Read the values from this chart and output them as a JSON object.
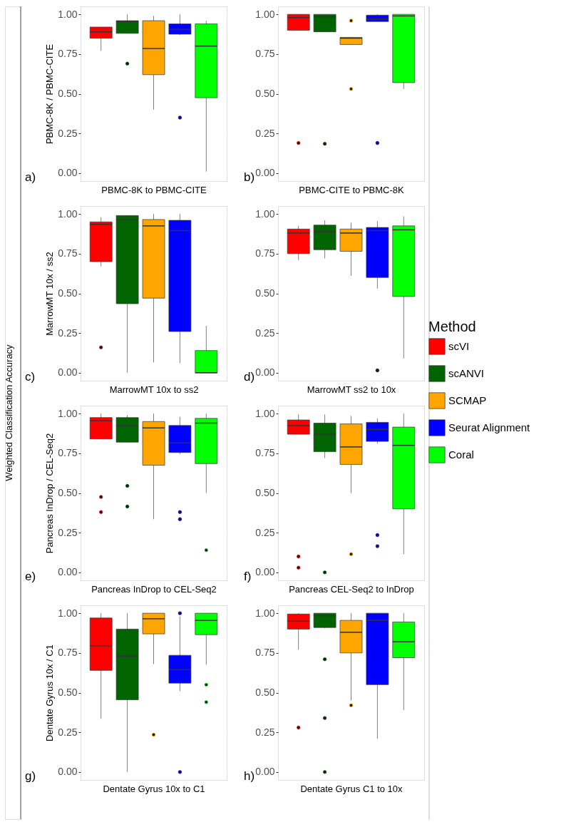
{
  "chart_data": [
    {
      "type": "box",
      "ylabel": "PBMC-8K / PBMC-CITE",
      "xlabel": "PBMC-8K to PBMC-CITE",
      "annotations": [
        "a)",
        "Weighted Classification Accuracy"
      ],
      "legend_title": "Method",
      "legend": "right",
      "grid": true,
      "tick_labels": "y",
      "categories": [
        null
      ],
      "ylim": [
        -0.05,
        1.05
      ],
      "yticks": [
        {
          "value": 0,
          "label": "0.00"
        },
        {
          "value": 0.25,
          "label": "0.25"
        },
        {
          "value": 0.5,
          "label": "0.50"
        },
        {
          "value": 0.75,
          "label": "0.75"
        },
        {
          "value": 1,
          "label": "1.00"
        }
      ],
      "series": [
        {
          "name": "scVI",
          "color": "#ff0000",
          "boxes": [
            {
              "low": 0.77,
              "q1": 0.85,
              "median": 0.89,
              "q3": 0.92,
              "high": 0.92
            }
          ]
        },
        {
          "name": "scANVI",
          "color": "#006400",
          "boxes": [
            {
              "low": 0.88,
              "q1": 0.88,
              "median": 0.955,
              "q3": 0.96,
              "high": 1.0,
              "outliers": [
                0.69
              ]
            }
          ]
        },
        {
          "name": "SCMAP",
          "color": "#ffa500",
          "boxes": [
            {
              "low": 0.4,
              "q1": 0.62,
              "median": 0.785,
              "q3": 0.96,
              "high": 0.99
            }
          ]
        },
        {
          "name": "Seurat Alignment",
          "color": "#0000ff",
          "boxes": [
            {
              "low": 0.87,
              "q1": 0.875,
              "median": 0.905,
              "q3": 0.94,
              "high": 1.0,
              "outliers": [
                0.35
              ]
            }
          ]
        },
        {
          "name": "Coral",
          "color": "#00ff00",
          "boxes": [
            {
              "low": 0.01,
              "q1": 0.475,
              "median": 0.8,
              "q3": 0.94,
              "high": 0.96
            }
          ]
        }
      ]
    },
    {
      "type": "box",
      "xlabel": "PBMC-CITE to PBMC-8K",
      "annotations": [
        "b)"
      ],
      "grid": true,
      "tick_labels": "y",
      "categories": [
        null
      ],
      "ylim": [
        -0.05,
        1.05
      ],
      "yticks": [
        {
          "value": 0,
          "label": "0.00"
        },
        {
          "value": 0.25,
          "label": "0.25"
        },
        {
          "value": 0.5,
          "label": "0.50"
        },
        {
          "value": 0.75,
          "label": "0.75"
        },
        {
          "value": 1,
          "label": "1.00"
        }
      ],
      "series": [
        {
          "name": "scVI",
          "color": "#ff0000",
          "boxes": [
            {
              "low": 0.9,
              "q1": 0.9,
              "median": 0.98,
              "q3": 1.0,
              "high": 1.0,
              "outliers": [
                0.19
              ]
            }
          ]
        },
        {
          "name": "scANVI",
          "color": "#006400",
          "boxes": [
            {
              "low": 0.89,
              "q1": 0.89,
              "median": 0.985,
              "q3": 1.0,
              "high": 1.0,
              "outliers": [
                0.185
              ]
            }
          ]
        },
        {
          "name": "SCMAP",
          "color": "#ffa500",
          "boxes": [
            {
              "low": 0.81,
              "q1": 0.81,
              "median": 0.85,
              "q3": 0.855,
              "high": 0.855,
              "outliers": [
                0.96,
                0.53
              ]
            }
          ]
        },
        {
          "name": "Seurat Alignment",
          "color": "#0000ff",
          "boxes": [
            {
              "low": 0.955,
              "q1": 0.955,
              "median": 0.97,
              "q3": 0.995,
              "high": 1.0,
              "outliers": [
                0.19
              ]
            }
          ]
        },
        {
          "name": "Coral",
          "color": "#00ff00",
          "boxes": [
            {
              "low": 0.53,
              "q1": 0.57,
              "median": 0.99,
              "q3": 1.0,
              "high": 1.0
            }
          ]
        }
      ]
    },
    {
      "type": "box",
      "ylabel": "MarrowMT 10x / ss2",
      "xlabel": "MarrowMT 10x to ss2",
      "annotations": [
        "c)"
      ],
      "grid": true,
      "tick_labels": "y",
      "categories": [
        null
      ],
      "ylim": [
        -0.05,
        1.05
      ],
      "yticks": [
        {
          "value": 0,
          "label": "0.00"
        },
        {
          "value": 0.25,
          "label": "0.25"
        },
        {
          "value": 0.5,
          "label": "0.50"
        },
        {
          "value": 0.75,
          "label": "0.75"
        },
        {
          "value": 1,
          "label": "1.00"
        }
      ],
      "series": [
        {
          "name": "scVI",
          "color": "#ff0000",
          "boxes": [
            {
              "low": 0.67,
              "q1": 0.7,
              "median": 0.935,
              "q3": 0.95,
              "high": 0.98,
              "outliers": [
                0.16
              ]
            }
          ]
        },
        {
          "name": "scANVI",
          "color": "#006400",
          "boxes": [
            {
              "low": 0.0,
              "q1": 0.435,
              "median": 0.965,
              "q3": 0.99,
              "high": 0.99
            }
          ]
        },
        {
          "name": "SCMAP",
          "color": "#ffa500",
          "boxes": [
            {
              "low": 0.065,
              "q1": 0.47,
              "median": 0.925,
              "q3": 0.965,
              "high": 1.0
            }
          ]
        },
        {
          "name": "Seurat Alignment",
          "color": "#0000ff",
          "boxes": [
            {
              "low": 0.06,
              "q1": 0.26,
              "median": 0.895,
              "q3": 0.96,
              "high": 1.0
            }
          ]
        },
        {
          "name": "Coral",
          "color": "#00ff00",
          "boxes": [
            {
              "low": 0.0,
              "q1": 0.0,
              "median": 0.0,
              "q3": 0.14,
              "high": 0.295
            }
          ]
        }
      ]
    },
    {
      "type": "box",
      "xlabel": "MarrowMT ss2 to 10x",
      "annotations": [
        "d)"
      ],
      "grid": true,
      "tick_labels": "y",
      "categories": [
        null
      ],
      "ylim": [
        -0.05,
        1.05
      ],
      "yticks": [
        {
          "value": 0,
          "label": "0.00"
        },
        {
          "value": 0.25,
          "label": "0.25"
        },
        {
          "value": 0.5,
          "label": "0.50"
        },
        {
          "value": 0.75,
          "label": "0.75"
        },
        {
          "value": 1,
          "label": "1.00"
        }
      ],
      "series": [
        {
          "name": "scVI",
          "color": "#ff0000",
          "boxes": [
            {
              "low": 0.71,
              "q1": 0.75,
              "median": 0.88,
              "q3": 0.905,
              "high": 0.925
            }
          ]
        },
        {
          "name": "scANVI",
          "color": "#006400",
          "boxes": [
            {
              "low": 0.72,
              "q1": 0.775,
              "median": 0.89,
              "q3": 0.93,
              "high": 0.96
            }
          ]
        },
        {
          "name": "SCMAP",
          "color": "#ffa500",
          "boxes": [
            {
              "low": 0.61,
              "q1": 0.765,
              "median": 0.88,
              "q3": 0.905,
              "high": 0.945
            }
          ]
        },
        {
          "name": "Seurat Alignment",
          "color": "#0000ff",
          "boxes": [
            {
              "low": 0.53,
              "q1": 0.6,
              "median": 0.895,
              "q3": 0.915,
              "high": 0.955,
              "outliers": [
                0.015
              ]
            }
          ]
        },
        {
          "name": "Coral",
          "color": "#00ff00",
          "boxes": [
            {
              "low": 0.09,
              "q1": 0.48,
              "median": 0.9,
              "q3": 0.925,
              "high": 0.985
            }
          ]
        }
      ]
    },
    {
      "type": "box",
      "ylabel": "Pancreas InDrop / CEL-Seq2",
      "xlabel": "Pancreas InDrop to CEL-Seq2",
      "annotations": [
        "e)"
      ],
      "grid": true,
      "tick_labels": "y",
      "categories": [
        null
      ],
      "ylim": [
        -0.05,
        1.05
      ],
      "yticks": [
        {
          "value": 0,
          "label": "0.00"
        },
        {
          "value": 0.25,
          "label": "0.25"
        },
        {
          "value": 0.5,
          "label": "0.50"
        },
        {
          "value": 0.75,
          "label": "0.75"
        },
        {
          "value": 1,
          "label": "1.00"
        }
      ],
      "series": [
        {
          "name": "scVI",
          "color": "#ff0000",
          "boxes": [
            {
              "low": 0.84,
              "q1": 0.84,
              "median": 0.955,
              "q3": 0.975,
              "high": 1.0,
              "outliers": [
                0.475,
                0.38
              ]
            }
          ]
        },
        {
          "name": "scANVI",
          "color": "#006400",
          "boxes": [
            {
              "low": 0.82,
              "q1": 0.82,
              "median": 0.925,
              "q3": 0.975,
              "high": 0.99,
              "outliers": [
                0.545,
                0.415
              ]
            }
          ]
        },
        {
          "name": "SCMAP",
          "color": "#ffa500",
          "boxes": [
            {
              "low": 0.335,
              "q1": 0.675,
              "median": 0.91,
              "q3": 0.95,
              "high": 1.0
            }
          ]
        },
        {
          "name": "Seurat Alignment",
          "color": "#0000ff",
          "boxes": [
            {
              "low": 0.745,
              "q1": 0.755,
              "median": 0.815,
              "q3": 0.925,
              "high": 0.98,
              "outliers": [
                0.38,
                0.335
              ]
            }
          ]
        },
        {
          "name": "Coral",
          "color": "#00ff00",
          "boxes": [
            {
              "low": 0.5,
              "q1": 0.685,
              "median": 0.94,
              "q3": 0.97,
              "high": 1.0,
              "outliers": [
                0.14
              ]
            }
          ]
        }
      ]
    },
    {
      "type": "box",
      "xlabel": "Pancreas CEL-Seq2 to InDrop",
      "annotations": [
        "f)"
      ],
      "grid": true,
      "tick_labels": "y",
      "categories": [
        null
      ],
      "ylim": [
        -0.05,
        1.05
      ],
      "yticks": [
        {
          "value": 0,
          "label": "0.00"
        },
        {
          "value": 0.25,
          "label": "0.25"
        },
        {
          "value": 0.5,
          "label": "0.50"
        },
        {
          "value": 0.75,
          "label": "0.75"
        },
        {
          "value": 1,
          "label": "1.00"
        }
      ],
      "series": [
        {
          "name": "scVI",
          "color": "#ff0000",
          "boxes": [
            {
              "low": 0.87,
              "q1": 0.87,
              "median": 0.925,
              "q3": 0.96,
              "high": 0.995,
              "outliers": [
                0.1,
                0.03
              ]
            }
          ]
        },
        {
          "name": "scANVI",
          "color": "#006400",
          "boxes": [
            {
              "low": 0.72,
              "q1": 0.76,
              "median": 0.87,
              "q3": 0.94,
              "high": 0.995,
              "outliers": [
                0.0
              ]
            }
          ]
        },
        {
          "name": "SCMAP",
          "color": "#ffa500",
          "boxes": [
            {
              "low": 0.5,
              "q1": 0.68,
              "median": 0.79,
              "q3": 0.935,
              "high": 0.985,
              "outliers": [
                0.115
              ]
            }
          ]
        },
        {
          "name": "Seurat Alignment",
          "color": "#0000ff",
          "boxes": [
            {
              "low": 0.81,
              "q1": 0.825,
              "median": 0.9,
              "q3": 0.945,
              "high": 0.97,
              "outliers": [
                0.235,
                0.165
              ]
            }
          ]
        },
        {
          "name": "Coral",
          "color": "#00ff00",
          "boxes": [
            {
              "low": 0.115,
              "q1": 0.4,
              "median": 0.8,
              "q3": 0.915,
              "high": 1.0
            }
          ]
        }
      ]
    },
    {
      "type": "box",
      "ylabel": "Dentate Gyrus 10x / C1",
      "xlabel": "Dentate Gyrus 10x to C1",
      "annotations": [
        "g)"
      ],
      "grid": true,
      "tick_labels": "y",
      "categories": [
        null
      ],
      "ylim": [
        -0.05,
        1.05
      ],
      "yticks": [
        {
          "value": 0,
          "label": "0.00"
        },
        {
          "value": 0.25,
          "label": "0.25"
        },
        {
          "value": 0.5,
          "label": "0.50"
        },
        {
          "value": 0.75,
          "label": "0.75"
        },
        {
          "value": 1,
          "label": "1.00"
        }
      ],
      "series": [
        {
          "name": "scVI",
          "color": "#ff0000",
          "boxes": [
            {
              "low": 0.335,
              "q1": 0.64,
              "median": 0.795,
              "q3": 0.97,
              "high": 1.0
            }
          ]
        },
        {
          "name": "scANVI",
          "color": "#006400",
          "boxes": [
            {
              "low": 0.0,
              "q1": 0.455,
              "median": 0.73,
              "q3": 0.9,
              "high": 1.0
            }
          ]
        },
        {
          "name": "SCMAP",
          "color": "#ffa500",
          "boxes": [
            {
              "low": 0.68,
              "q1": 0.87,
              "median": 0.965,
              "q3": 1.0,
              "high": 1.0,
              "outliers": [
                0.235
              ]
            }
          ]
        },
        {
          "name": "Seurat Alignment",
          "color": "#0000ff",
          "boxes": [
            {
              "low": 0.51,
              "q1": 0.56,
              "median": 0.645,
              "q3": 0.735,
              "high": 0.98,
              "outliers": [
                1.0,
                0.0
              ]
            }
          ]
        },
        {
          "name": "Coral",
          "color": "#00ff00",
          "boxes": [
            {
              "low": 0.675,
              "q1": 0.865,
              "median": 0.955,
              "q3": 1.0,
              "high": 1.0,
              "outliers": [
                0.55,
                0.44
              ]
            }
          ]
        }
      ]
    },
    {
      "type": "box",
      "xlabel": "Dentate Gyrus C1 to 10x",
      "annotations": [
        "h)"
      ],
      "grid": true,
      "tick_labels": "y",
      "categories": [
        null
      ],
      "ylim": [
        -0.05,
        1.05
      ],
      "yticks": [
        {
          "value": 0,
          "label": "0.00"
        },
        {
          "value": 0.25,
          "label": "0.25"
        },
        {
          "value": 0.5,
          "label": "0.50"
        },
        {
          "value": 0.75,
          "label": "0.75"
        },
        {
          "value": 1,
          "label": "1.00"
        }
      ],
      "series": [
        {
          "name": "scVI",
          "color": "#ff0000",
          "boxes": [
            {
              "low": 0.77,
              "q1": 0.9,
              "median": 0.95,
              "q3": 0.995,
              "high": 1.0,
              "outliers": [
                0.28
              ]
            }
          ]
        },
        {
          "name": "scANVI",
          "color": "#006400",
          "boxes": [
            {
              "low": 0.905,
              "q1": 0.91,
              "median": 0.985,
              "q3": 1.0,
              "high": 1.0,
              "outliers": [
                0.71,
                0.34,
                0.0
              ]
            }
          ]
        },
        {
          "name": "SCMAP",
          "color": "#ffa500",
          "boxes": [
            {
              "low": 0.45,
              "q1": 0.75,
              "median": 0.88,
              "q3": 0.955,
              "high": 1.0,
              "outliers": [
                0.42
              ]
            }
          ]
        },
        {
          "name": "Seurat Alignment",
          "color": "#0000ff",
          "boxes": [
            {
              "low": 0.21,
              "q1": 0.55,
              "median": 0.955,
              "q3": 1.0,
              "high": 1.0
            }
          ]
        },
        {
          "name": "Coral",
          "color": "#00ff00",
          "boxes": [
            {
              "low": 0.39,
              "q1": 0.72,
              "median": 0.82,
              "q3": 0.945,
              "high": 1.0
            }
          ]
        }
      ]
    }
  ]
}
